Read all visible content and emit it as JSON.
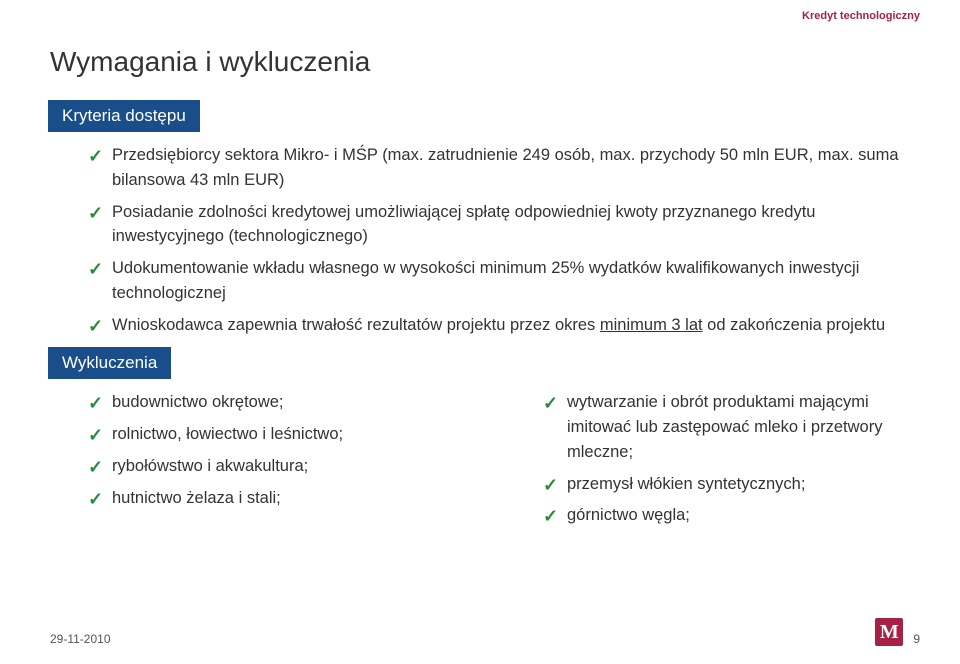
{
  "header_label": "Kredyt technologiczny",
  "page_title": "Wymagania i wykluczenia",
  "section1": {
    "tag": "Kryteria dostępu",
    "items": [
      "Przedsiębiorcy sektora Mikro- i MŚP (max. zatrudnienie  249 osób, max. przychody 50 mln EUR, max. suma bilansowa 43 mln EUR)",
      "Posiadanie zdolności kredytowej umożliwiającej spłatę odpowiedniej kwoty przyznanego kredytu inwestycyjnego (technologicznego)",
      "Udokumentowanie wkładu własnego w wysokości minimum 25% wydatków kwalifikowanych inwestycji technologicznej",
      "Wnioskodawca zapewnia trwałość rezultatów projektu przez okres <span class='underline'>minimum 3 lat</span> od zakończenia projektu"
    ]
  },
  "section2": {
    "tag": "Wykluczenia",
    "left_items": [
      "budownictwo okrętowe;",
      "rolnictwo, łowiectwo i leśnictwo;",
      "rybołówstwo i akwakultura;",
      "hutnictwo żelaza i stali;"
    ],
    "right_items": [
      "wytwarzanie i obrót produktami mającymi imitować lub zastępować mleko i przetwory mleczne;",
      "przemysł włókien syntetycznych;",
      "górnictwo węgla;"
    ]
  },
  "footer": {
    "date": "29-11-2010",
    "page_num": "9",
    "logo_letter": "M"
  },
  "colors": {
    "accent": "#a72147",
    "tag_bg": "#1a4e8a",
    "check": "#2a8a3a",
    "text": "#333333"
  }
}
